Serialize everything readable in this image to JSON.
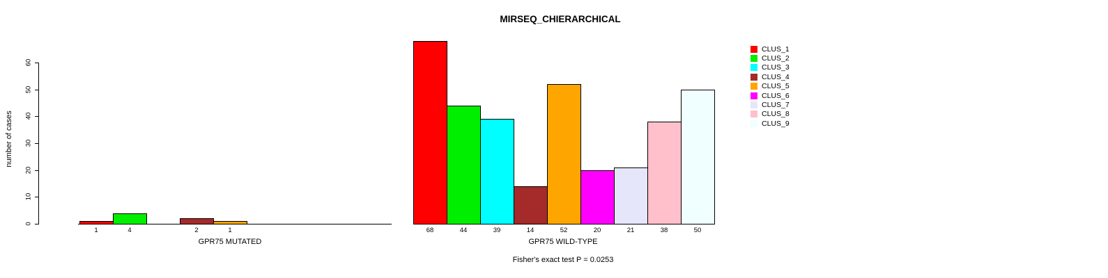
{
  "chart_data": {
    "type": "bar",
    "title": "MIRSEQ_CHIERARCHICAL",
    "ylabel": "number of cases",
    "ylim": [
      0,
      60
    ],
    "yticks": [
      0,
      10,
      20,
      30,
      40,
      50,
      60
    ],
    "grid": false,
    "legend_position": "right",
    "clusters": [
      {
        "name": "CLUS_1",
        "color": "#FF0000"
      },
      {
        "name": "CLUS_2",
        "color": "#00EE00"
      },
      {
        "name": "CLUS_3",
        "color": "#00FFFF"
      },
      {
        "name": "CLUS_4",
        "color": "#A52A2A"
      },
      {
        "name": "CLUS_5",
        "color": "#FFA500"
      },
      {
        "name": "CLUS_6",
        "color": "#FF00FF"
      },
      {
        "name": "CLUS_7",
        "color": "#E6E6FA"
      },
      {
        "name": "CLUS_8",
        "color": "#FFC0CB"
      },
      {
        "name": "CLUS_9",
        "color": "#F0FFFF"
      }
    ],
    "groups": [
      {
        "xlabel": "GPR75 MUTATED",
        "categories": [
          "CLUS_1",
          "CLUS_2",
          "CLUS_3",
          "CLUS_4",
          "CLUS_5",
          "CLUS_6",
          "CLUS_7",
          "CLUS_8",
          "CLUS_9"
        ],
        "values": [
          1,
          4,
          0,
          2,
          1,
          0,
          0,
          0,
          0
        ],
        "bar_labels": [
          "1",
          "4",
          "",
          "2",
          "1",
          "",
          "",
          "",
          ""
        ]
      },
      {
        "xlabel": "GPR75 WILD-TYPE",
        "categories": [
          "CLUS_1",
          "CLUS_2",
          "CLUS_3",
          "CLUS_4",
          "CLUS_5",
          "CLUS_6",
          "CLUS_7",
          "CLUS_8",
          "CLUS_9"
        ],
        "values": [
          68,
          44,
          39,
          14,
          52,
          20,
          21,
          38,
          50
        ],
        "bar_labels": [
          "68",
          "44",
          "39",
          "14",
          "52",
          "20",
          "21",
          "38",
          "50"
        ]
      }
    ],
    "annotation": "Fisher's exact test P = 0.0253"
  }
}
